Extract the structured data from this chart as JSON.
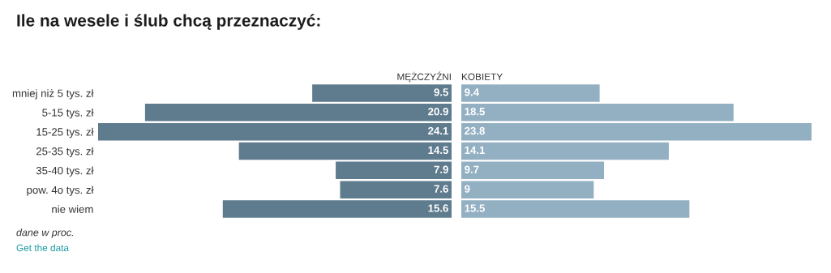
{
  "chart_data": [
    {
      "type": "bar",
      "orientation": "horizontal",
      "title": "Ile na wesele i ślub chcą przeznaczyć:",
      "xlabel": "MĘŻCZYŹNI",
      "categories": [
        "mniej niż 5 tys. zł",
        "5-15 tys. zł",
        "15-25 tys. zł",
        "25-35 tys. zł",
        "35-40 tys. zł",
        "pow. 4o tys. zł",
        "nie wiem"
      ],
      "values": [
        9.5,
        20.9,
        24.1,
        14.5,
        7.9,
        7.6,
        15.6
      ],
      "color": "#5f7b8e",
      "data_labels": true,
      "xlim": [
        24.1,
        0
      ],
      "tick_labels": "y",
      "grid": false,
      "legend": false,
      "annotations": [
        "dane w proc.",
        "Get the data"
      ]
    },
    {
      "type": "bar",
      "orientation": "horizontal",
      "xlabel": "KOBIETY",
      "categories": [
        null,
        null,
        null,
        null,
        null,
        null,
        null
      ],
      "values": [
        9.4,
        18.5,
        23.8,
        14.1,
        9.7,
        9,
        15.5
      ],
      "color": "#93b0c3",
      "data_labels": true,
      "xlim": [
        0,
        23.8
      ],
      "tick_labels": false,
      "grid": false,
      "legend": false
    }
  ]
}
